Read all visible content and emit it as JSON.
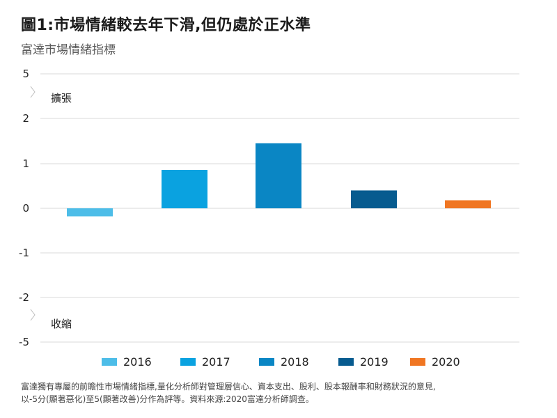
{
  "title": "圖1:市場情緒較去年下滑,但仍處於正水準",
  "subtitle": "富達市場情緒指標",
  "footnote_line1": "富達獨有專屬的前瞻性市場情緒指標,量化分析師對管理層信心、資本支出、股利、股本報酬率和財務狀況的意見,",
  "footnote_line2": "以-5分(顯著惡化)至5(顯著改善)分作為評等。資料來源:2020富達分析師調查。",
  "chart_data": {
    "type": "bar",
    "categories": [
      "2016",
      "2017",
      "2018",
      "2019",
      "2020"
    ],
    "values": [
      -0.18,
      0.86,
      1.46,
      0.4,
      0.18
    ],
    "colors": [
      "#4dbde8",
      "#0aa2e0",
      "#0a86c4",
      "#075b8f",
      "#f07622"
    ],
    "y_ticks": [
      "5",
      "2",
      "1",
      "0",
      "-1",
      "-2",
      "-5"
    ],
    "y_tick_values": [
      5,
      2,
      1,
      0,
      -1,
      -2,
      -5
    ],
    "axis_break": true,
    "annotations": {
      "top": "擴張",
      "bottom": "收縮"
    },
    "legend": [
      "2016",
      "2017",
      "2018",
      "2019",
      "2020"
    ],
    "legend_placement": "bottom",
    "grid": true
  }
}
